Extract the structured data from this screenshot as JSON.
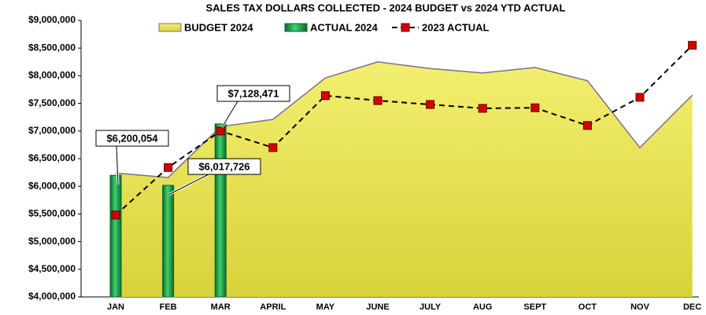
{
  "chart_data": {
    "type": "combo",
    "title": "SALES TAX DOLLARS COLLECTED - 2024 BUDGET vs 2024 YTD ACTUAL",
    "categories": [
      "JAN",
      "FEB",
      "MAR",
      "APRIL",
      "MAY",
      "JUNE",
      "JULY",
      "AUG",
      "SEPT",
      "OCT",
      "NOV",
      "DEC"
    ],
    "series": [
      {
        "name": "BUDGET 2024",
        "type": "area",
        "color": "#e8e45a",
        "values": [
          6240000,
          6160000,
          7080000,
          7210000,
          7960000,
          8250000,
          8130000,
          8050000,
          8150000,
          7910000,
          6700000,
          7650000
        ]
      },
      {
        "name": "ACTUAL 2024",
        "type": "bar",
        "color": "#1aa64a",
        "values": [
          6200054,
          6017726,
          7128471,
          null,
          null,
          null,
          null,
          null,
          null,
          null,
          null,
          null
        ],
        "value_labels": [
          "$6,200,054",
          "$6,017,726",
          "$7,128,471",
          null,
          null,
          null,
          null,
          null,
          null,
          null,
          null,
          null
        ]
      },
      {
        "name": "2023 ACTUAL",
        "type": "line",
        "color": "#d40000",
        "values": [
          5480000,
          6340000,
          7000000,
          6700000,
          7640000,
          7550000,
          7480000,
          7410000,
          7420000,
          7100000,
          7610000,
          8550000
        ]
      }
    ],
    "ylim": [
      4000000,
      9000000
    ],
    "yticks": [
      {
        "value": 4000000,
        "label": "$4,000,000"
      },
      {
        "value": 4500000,
        "label": "$4,500,000"
      },
      {
        "value": 5000000,
        "label": "$5,000,000"
      },
      {
        "value": 5500000,
        "label": "$5,500,000"
      },
      {
        "value": 6000000,
        "label": "$6,000,000"
      },
      {
        "value": 6500000,
        "label": "$6,500,000"
      },
      {
        "value": 7000000,
        "label": "$7,000,000"
      },
      {
        "value": 7500000,
        "label": "$7,500,000"
      },
      {
        "value": 8000000,
        "label": "$8,000,000"
      },
      {
        "value": 8500000,
        "label": "$8,500,000"
      },
      {
        "value": 9000000,
        "label": "$9,000,000"
      }
    ]
  }
}
